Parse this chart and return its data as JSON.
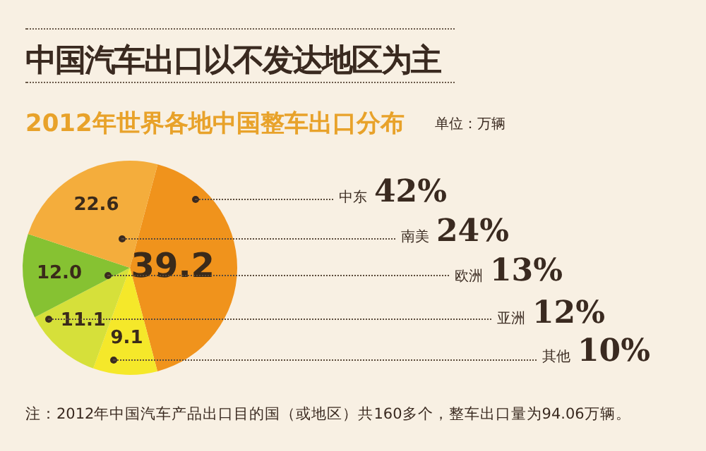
{
  "chart_data": {
    "type": "pie",
    "title": "中国汽车出口以不发达地区为主",
    "subtitle": "2012年世界各地中国整车出口分布",
    "categories": [
      "中东",
      "其他",
      "亚洲",
      "欧洲",
      "南美"
    ],
    "values": [
      39.2,
      9.1,
      11.1,
      12.0,
      22.6
    ],
    "value_labels": [
      "39.2",
      "9.1",
      "11.1",
      "12.0",
      "22.6"
    ],
    "colors": [
      "#f0931c",
      "#f5e82a",
      "#d6e03a",
      "#86c232",
      "#f4ad3c"
    ],
    "annotations": [
      "42%",
      "24%",
      "13%",
      "12%",
      "10%",
      "单位：万辆",
      "注：2012年中国汽车产品出口目的国（或地区）共160多个，整车出口量为94.06万辆。"
    ],
    "legend": false
  }
}
